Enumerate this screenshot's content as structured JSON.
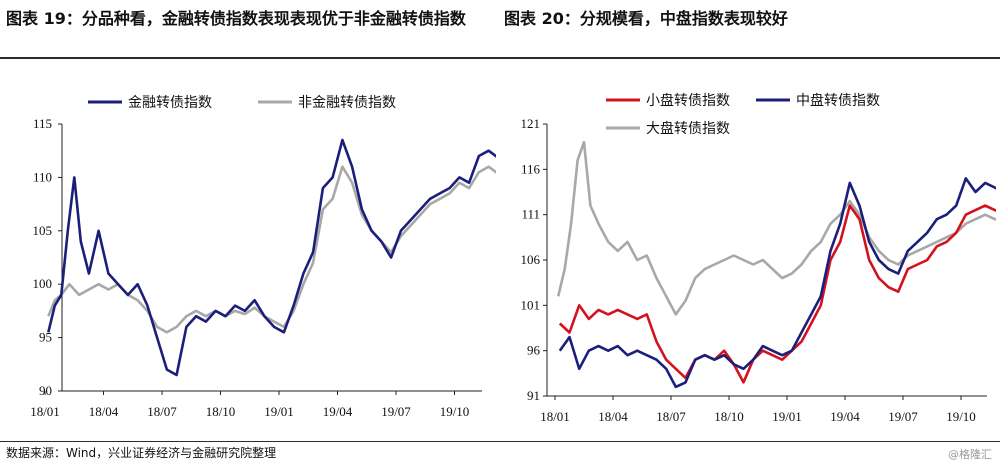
{
  "header": {
    "title_left": "图表 19：分品种看，金融转债指数表现表现优于非金融转债指数",
    "title_right": "图表 20：分规模看，中盘指数表现较好"
  },
  "footer": {
    "source": "数据来源：Wind，兴业证券经济与金融研究院整理",
    "watermark": "@格隆汇"
  },
  "colors": {
    "navy": "#1b1f7a",
    "gray": "#a8a8a8",
    "red": "#d4121c"
  },
  "chart_data": [
    {
      "type": "line",
      "x_ticks": [
        "18/01",
        "18/04",
        "18/07",
        "18/10",
        "19/01",
        "19/04",
        "19/07",
        "19/10"
      ],
      "ylim": [
        90,
        115
      ],
      "y_ticks": [
        90,
        95,
        100,
        105,
        110,
        115
      ],
      "legend_position": "top",
      "series": [
        {
          "name": "金融转债指数",
          "color": "#1b1f7a",
          "points": [
            [
              "18/01",
              95.5
            ],
            [
              "18/01",
              98
            ],
            [
              "18/01",
              99
            ],
            [
              "18/02",
              105
            ],
            [
              "18/02",
              110
            ],
            [
              "18/02",
              104
            ],
            [
              "18/03",
              101
            ],
            [
              "18/03",
              105
            ],
            [
              "18/04",
              101
            ],
            [
              "18/04",
              100
            ],
            [
              "18/05",
              99
            ],
            [
              "18/05",
              100
            ],
            [
              "18/06",
              98
            ],
            [
              "18/06",
              95
            ],
            [
              "18/07",
              92
            ],
            [
              "18/07",
              91.5
            ],
            [
              "18/08",
              96
            ],
            [
              "18/08",
              97
            ],
            [
              "18/09",
              96.5
            ],
            [
              "18/09",
              97.5
            ],
            [
              "18/10",
              97
            ],
            [
              "18/10",
              98
            ],
            [
              "18/11",
              97.5
            ],
            [
              "18/11",
              98.5
            ],
            [
              "18/12",
              97
            ],
            [
              "18/12",
              96
            ],
            [
              "19/01",
              95.5
            ],
            [
              "19/01",
              98
            ],
            [
              "19/02",
              101
            ],
            [
              "19/02",
              103
            ],
            [
              "19/03",
              109
            ],
            [
              "19/03",
              110
            ],
            [
              "19/04",
              113.5
            ],
            [
              "19/04",
              111
            ],
            [
              "19/05",
              107
            ],
            [
              "19/05",
              105
            ],
            [
              "19/06",
              104
            ],
            [
              "19/06",
              102.5
            ],
            [
              "19/07",
              105
            ],
            [
              "19/07",
              106
            ],
            [
              "19/08",
              107
            ],
            [
              "19/08",
              108
            ],
            [
              "19/09",
              108.5
            ],
            [
              "19/09",
              109
            ],
            [
              "19/10",
              110
            ],
            [
              "19/10",
              109.5
            ],
            [
              "19/11",
              112
            ],
            [
              "19/11",
              112.5
            ],
            [
              "19/12",
              111.5
            ]
          ]
        },
        {
          "name": "非金融转债指数",
          "color": "#a8a8a8",
          "points": [
            [
              "18/01",
              97
            ],
            [
              "18/01",
              98.5
            ],
            [
              "18/01",
              99
            ],
            [
              "18/02",
              100
            ],
            [
              "18/02",
              99
            ],
            [
              "18/03",
              99.5
            ],
            [
              "18/03",
              100
            ],
            [
              "18/04",
              99.5
            ],
            [
              "18/04",
              100
            ],
            [
              "18/05",
              99
            ],
            [
              "18/05",
              98.5
            ],
            [
              "18/06",
              97.5
            ],
            [
              "18/06",
              96
            ],
            [
              "18/07",
              95.5
            ],
            [
              "18/07",
              96
            ],
            [
              "18/08",
              97
            ],
            [
              "18/08",
              97.5
            ],
            [
              "18/09",
              97
            ],
            [
              "18/09",
              97.5
            ],
            [
              "18/10",
              97
            ],
            [
              "18/10",
              97.5
            ],
            [
              "18/11",
              97.2
            ],
            [
              "18/11",
              97.8
            ],
            [
              "18/12",
              97
            ],
            [
              "18/12",
              96.5
            ],
            [
              "19/01",
              96
            ],
            [
              "19/01",
              97.5
            ],
            [
              "19/02",
              100
            ],
            [
              "19/02",
              102
            ],
            [
              "19/03",
              107
            ],
            [
              "19/03",
              108
            ],
            [
              "19/04",
              111
            ],
            [
              "19/04",
              109.5
            ],
            [
              "19/05",
              106.5
            ],
            [
              "19/05",
              105
            ],
            [
              "19/06",
              104
            ],
            [
              "19/06",
              103
            ],
            [
              "19/07",
              104.5
            ],
            [
              "19/07",
              105.5
            ],
            [
              "19/08",
              106.5
            ],
            [
              "19/08",
              107.5
            ],
            [
              "19/09",
              108
            ],
            [
              "19/09",
              108.5
            ],
            [
              "19/10",
              109.5
            ],
            [
              "19/10",
              109
            ],
            [
              "19/11",
              110.5
            ],
            [
              "19/11",
              111
            ],
            [
              "19/12",
              110
            ]
          ]
        }
      ]
    },
    {
      "type": "line",
      "x_ticks": [
        "18/01",
        "18/04",
        "18/07",
        "18/10",
        "19/01",
        "19/04",
        "19/07",
        "19/10"
      ],
      "ylim": [
        91,
        121
      ],
      "y_ticks": [
        91,
        96,
        101,
        106,
        111,
        116,
        121
      ],
      "legend_position": "top",
      "series": [
        {
          "name": "小盘转债指数",
          "color": "#d4121c",
          "points": [
            [
              "18/01",
              99
            ],
            [
              "18/01",
              98
            ],
            [
              "18/02",
              101
            ],
            [
              "18/02",
              99.5
            ],
            [
              "18/03",
              100.5
            ],
            [
              "18/03",
              100
            ],
            [
              "18/04",
              100.5
            ],
            [
              "18/04",
              100
            ],
            [
              "18/05",
              99.5
            ],
            [
              "18/05",
              100
            ],
            [
              "18/06",
              97
            ],
            [
              "18/06",
              95
            ],
            [
              "18/07",
              94
            ],
            [
              "18/07",
              93
            ],
            [
              "18/08",
              95
            ],
            [
              "18/08",
              95.5
            ],
            [
              "18/09",
              95
            ],
            [
              "18/09",
              96
            ],
            [
              "18/10",
              94.5
            ],
            [
              "18/10",
              92.5
            ],
            [
              "18/11",
              95
            ],
            [
              "18/11",
              96
            ],
            [
              "18/12",
              95.5
            ],
            [
              "18/12",
              95
            ],
            [
              "19/01",
              96
            ],
            [
              "19/01",
              97
            ],
            [
              "19/02",
              99
            ],
            [
              "19/02",
              101
            ],
            [
              "19/03",
              106
            ],
            [
              "19/03",
              108
            ],
            [
              "19/04",
              112
            ],
            [
              "19/04",
              110.5
            ],
            [
              "19/05",
              106
            ],
            [
              "19/05",
              104
            ],
            [
              "19/06",
              103
            ],
            [
              "19/06",
              102.5
            ],
            [
              "19/07",
              105
            ],
            [
              "19/07",
              105.5
            ],
            [
              "19/08",
              106
            ],
            [
              "19/08",
              107.5
            ],
            [
              "19/09",
              108
            ],
            [
              "19/09",
              109
            ],
            [
              "19/10",
              111
            ],
            [
              "19/10",
              111.5
            ],
            [
              "19/11",
              112
            ],
            [
              "19/11",
              111.5
            ],
            [
              "19/12",
              111
            ]
          ]
        },
        {
          "name": "中盘转债指数",
          "color": "#1b1f7a",
          "points": [
            [
              "18/01",
              96
            ],
            [
              "18/01",
              97.5
            ],
            [
              "18/02",
              94
            ],
            [
              "18/02",
              96
            ],
            [
              "18/03",
              96.5
            ],
            [
              "18/03",
              96
            ],
            [
              "18/04",
              96.5
            ],
            [
              "18/04",
              95.5
            ],
            [
              "18/05",
              96
            ],
            [
              "18/05",
              95.5
            ],
            [
              "18/06",
              95
            ],
            [
              "18/06",
              94
            ],
            [
              "18/07",
              92
            ],
            [
              "18/07",
              92.5
            ],
            [
              "18/08",
              95
            ],
            [
              "18/08",
              95.5
            ],
            [
              "18/09",
              95
            ],
            [
              "18/09",
              95.5
            ],
            [
              "18/10",
              94.5
            ],
            [
              "18/10",
              94
            ],
            [
              "18/11",
              95
            ],
            [
              "18/11",
              96.5
            ],
            [
              "18/12",
              96
            ],
            [
              "18/12",
              95.5
            ],
            [
              "19/01",
              96
            ],
            [
              "19/01",
              98
            ],
            [
              "19/02",
              100
            ],
            [
              "19/02",
              102
            ],
            [
              "19/03",
              107
            ],
            [
              "19/03",
              110
            ],
            [
              "19/04",
              114.5
            ],
            [
              "19/04",
              112
            ],
            [
              "19/05",
              108
            ],
            [
              "19/05",
              106
            ],
            [
              "19/06",
              105
            ],
            [
              "19/06",
              104.5
            ],
            [
              "19/07",
              107
            ],
            [
              "19/07",
              108
            ],
            [
              "19/08",
              109
            ],
            [
              "19/08",
              110.5
            ],
            [
              "19/09",
              111
            ],
            [
              "19/09",
              112
            ],
            [
              "19/10",
              115
            ],
            [
              "19/10",
              113.5
            ],
            [
              "19/11",
              114.5
            ],
            [
              "19/11",
              114
            ],
            [
              "19/12",
              113
            ]
          ]
        },
        {
          "name": "大盘转债指数",
          "color": "#a8a8a8",
          "points": [
            [
              "18/01",
              102
            ],
            [
              "18/01",
              105
            ],
            [
              "18/01",
              110
            ],
            [
              "18/02",
              117
            ],
            [
              "18/02",
              119
            ],
            [
              "18/02",
              112
            ],
            [
              "18/03",
              110
            ],
            [
              "18/03",
              108
            ],
            [
              "18/04",
              107
            ],
            [
              "18/04",
              108
            ],
            [
              "18/05",
              106
            ],
            [
              "18/05",
              106.5
            ],
            [
              "18/06",
              104
            ],
            [
              "18/06",
              102
            ],
            [
              "18/07",
              100
            ],
            [
              "18/07",
              101.5
            ],
            [
              "18/08",
              104
            ],
            [
              "18/08",
              105
            ],
            [
              "18/09",
              105.5
            ],
            [
              "18/09",
              106
            ],
            [
              "18/10",
              106.5
            ],
            [
              "18/10",
              106
            ],
            [
              "18/11",
              105.5
            ],
            [
              "18/11",
              106
            ],
            [
              "18/12",
              105
            ],
            [
              "18/12",
              104
            ],
            [
              "19/01",
              104.5
            ],
            [
              "19/01",
              105.5
            ],
            [
              "19/02",
              107
            ],
            [
              "19/02",
              108
            ],
            [
              "19/03",
              110
            ],
            [
              "19/03",
              111
            ],
            [
              "19/04",
              112.5
            ],
            [
              "19/04",
              111
            ],
            [
              "19/05",
              108.5
            ],
            [
              "19/05",
              107
            ],
            [
              "19/06",
              106
            ],
            [
              "19/06",
              105.5
            ],
            [
              "19/07",
              106.5
            ],
            [
              "19/07",
              107
            ],
            [
              "19/08",
              107.5
            ],
            [
              "19/08",
              108
            ],
            [
              "19/09",
              108.5
            ],
            [
              "19/09",
              109
            ],
            [
              "19/10",
              110
            ],
            [
              "19/10",
              110.5
            ],
            [
              "19/11",
              111
            ],
            [
              "19/11",
              110.5
            ],
            [
              "19/12",
              111
            ]
          ]
        }
      ]
    }
  ]
}
